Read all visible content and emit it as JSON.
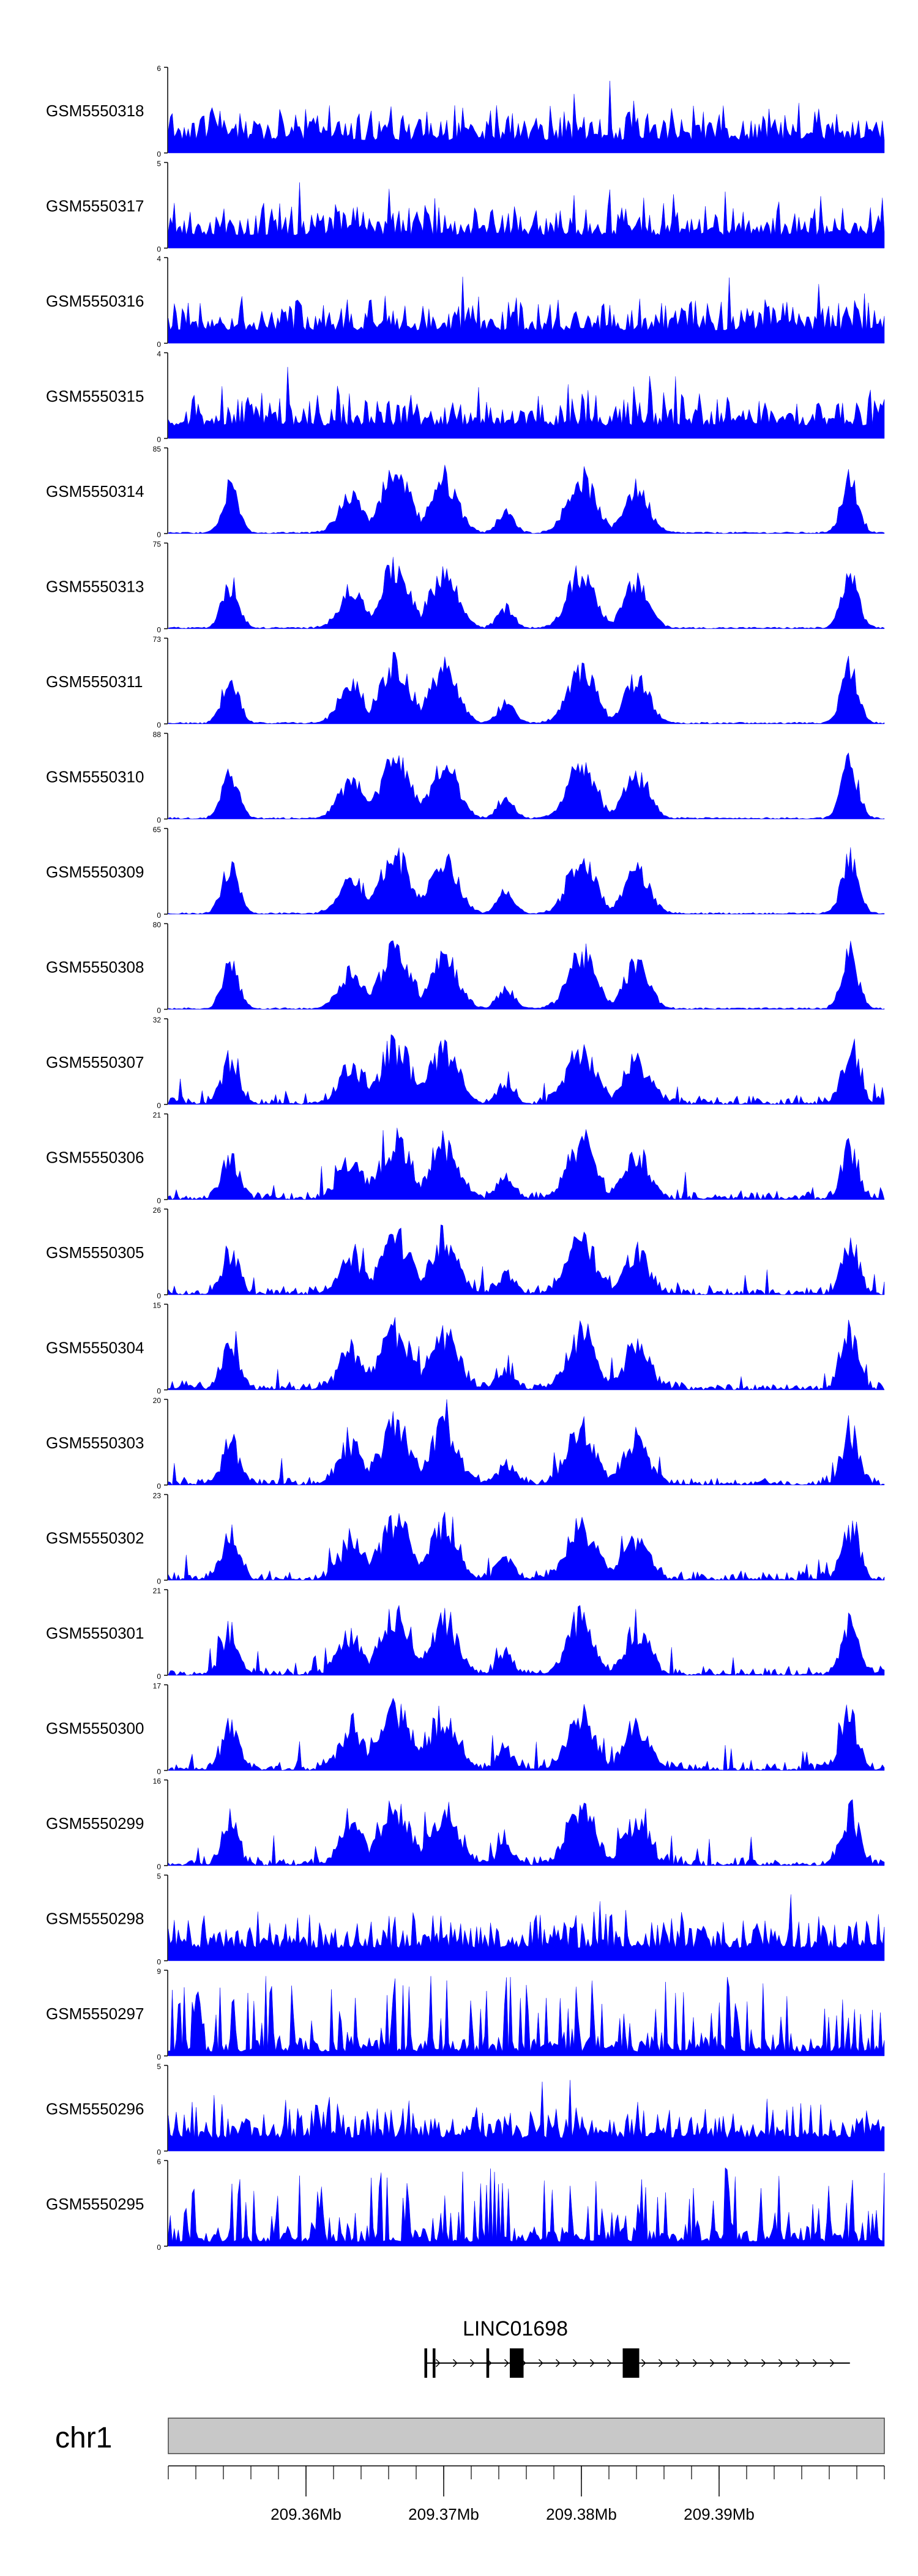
{
  "colors": {
    "signal": "#0000ff",
    "axis": "#000000",
    "ideogram": "#c8c8c8",
    "ideogram_border": "#444444",
    "gene": "#000000",
    "background": "#ffffff"
  },
  "chart_data": {
    "type": "area",
    "region_mb": [
      209.35,
      209.402
    ],
    "tracks": [
      {
        "name": "GSM5550318",
        "ymax": 6,
        "ytick_labels": [
          "6",
          "0"
        ],
        "profile": "noise",
        "seed": 318
      },
      {
        "name": "GSM5550317",
        "ymax": 5,
        "ytick_labels": [
          "5",
          "0"
        ],
        "profile": "noise",
        "seed": 317
      },
      {
        "name": "GSM5550316",
        "ymax": 4,
        "ytick_labels": [
          "4",
          "0"
        ],
        "profile": "noise",
        "seed": 316
      },
      {
        "name": "GSM5550315",
        "ymax": 4,
        "ytick_labels": [
          "4",
          "0"
        ],
        "profile": "noise",
        "seed": 315
      },
      {
        "name": "GSM5550314",
        "ymax": 85,
        "ytick_labels": [
          "85",
          "0"
        ],
        "profile": "peaks",
        "seed": 314
      },
      {
        "name": "GSM5550313",
        "ymax": 75,
        "ytick_labels": [
          "75",
          "0"
        ],
        "profile": "peaks",
        "seed": 313
      },
      {
        "name": "GSM5550311",
        "ymax": 73,
        "ytick_labels": [
          "73",
          "0"
        ],
        "profile": "peaks",
        "seed": 311
      },
      {
        "name": "GSM5550310",
        "ymax": 88,
        "ytick_labels": [
          "88",
          "0"
        ],
        "profile": "peaks",
        "seed": 310
      },
      {
        "name": "GSM5550309",
        "ymax": 65,
        "ytick_labels": [
          "65",
          "0"
        ],
        "profile": "peaks",
        "seed": 309
      },
      {
        "name": "GSM5550308",
        "ymax": 80,
        "ytick_labels": [
          "80",
          "0"
        ],
        "profile": "peaks",
        "seed": 308
      },
      {
        "name": "GSM5550307",
        "ymax": 32,
        "ytick_labels": [
          "32",
          "0"
        ],
        "profile": "peaks_noisy",
        "seed": 307
      },
      {
        "name": "GSM5550306",
        "ymax": 21,
        "ytick_labels": [
          "21",
          "0"
        ],
        "profile": "peaks_noisy",
        "seed": 306
      },
      {
        "name": "GSM5550305",
        "ymax": 26,
        "ytick_labels": [
          "26",
          "0"
        ],
        "profile": "peaks_noisy",
        "seed": 305
      },
      {
        "name": "GSM5550304",
        "ymax": 15,
        "ytick_labels": [
          "15",
          "0"
        ],
        "profile": "peaks_noisy",
        "seed": 304
      },
      {
        "name": "GSM5550303",
        "ymax": 20,
        "ytick_labels": [
          "20",
          "0"
        ],
        "profile": "peaks_noisy",
        "seed": 303
      },
      {
        "name": "GSM5550302",
        "ymax": 23,
        "ytick_labels": [
          "23",
          "0"
        ],
        "profile": "peaks_noisy",
        "seed": 302
      },
      {
        "name": "GSM5550301",
        "ymax": 21,
        "ytick_labels": [
          "21",
          "0"
        ],
        "profile": "peaks_noisy",
        "seed": 301
      },
      {
        "name": "GSM5550300",
        "ymax": 17,
        "ytick_labels": [
          "17",
          "0"
        ],
        "profile": "peaks_noisy",
        "seed": 300
      },
      {
        "name": "GSM5550299",
        "ymax": 16,
        "ytick_labels": [
          "16",
          "0"
        ],
        "profile": "peaks_noisy",
        "seed": 299
      },
      {
        "name": "GSM5550298",
        "ymax": 5,
        "ytick_labels": [
          "5",
          "0"
        ],
        "profile": "noise",
        "seed": 298
      },
      {
        "name": "GSM5550297",
        "ymax": 9,
        "ytick_labels": [
          "9",
          "0"
        ],
        "profile": "spiky",
        "seed": 297
      },
      {
        "name": "GSM5550296",
        "ymax": 5,
        "ytick_labels": [
          "5",
          "0"
        ],
        "profile": "noise",
        "seed": 296
      },
      {
        "name": "GSM5550295",
        "ymax": 6,
        "ytick_labels": [
          "6",
          "0"
        ],
        "profile": "spiky",
        "seed": 295
      }
    ],
    "peak_regions_mb": [
      {
        "center": 209.3545,
        "width": 0.0012,
        "height": 0.65
      },
      {
        "center": 209.3633,
        "width": 0.0018,
        "height": 0.55
      },
      {
        "center": 209.3665,
        "width": 0.0022,
        "height": 0.85
      },
      {
        "center": 209.37,
        "width": 0.002,
        "height": 0.8
      },
      {
        "center": 209.3745,
        "width": 0.0012,
        "height": 0.3
      },
      {
        "center": 209.38,
        "width": 0.002,
        "height": 0.8
      },
      {
        "center": 209.384,
        "width": 0.0018,
        "height": 0.65
      },
      {
        "center": 209.3995,
        "width": 0.0012,
        "height": 0.8
      }
    ],
    "gene": {
      "name": "LINC01698",
      "start_mb": 209.3686,
      "end_mb": 209.3995,
      "exons_mb": [
        [
          209.3686,
          209.3688
        ],
        [
          209.3692,
          209.3694
        ],
        [
          209.3731,
          209.3733
        ],
        [
          209.3748,
          209.3758
        ],
        [
          209.383,
          209.3842
        ]
      ]
    },
    "chromosome": "chr1",
    "xaxis": {
      "ticks_mb": [
        209.36,
        209.37,
        209.38,
        209.39
      ],
      "tick_labels": [
        "209.36Mb",
        "209.37Mb",
        "209.38Mb",
        "209.39Mb"
      ],
      "minor_tick_step_mb": 0.002
    }
  }
}
